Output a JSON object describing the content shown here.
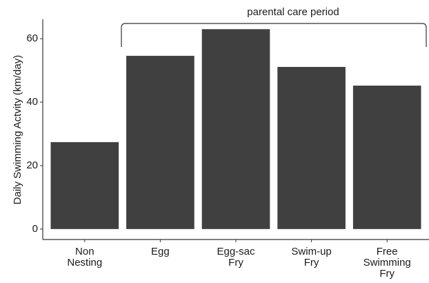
{
  "chart_data": {
    "type": "bar",
    "y_label": "Daily Swimming Actvity (km/day)",
    "annotation": "parental care period",
    "categories": [
      "Non\nNesting",
      "Egg",
      "Egg-sac\nFry",
      "Swim-up\nFry",
      "Free\nSwimming\nFry"
    ],
    "values": [
      27.4,
      54.6,
      63.0,
      51.1,
      45.2
    ],
    "color": "#404040",
    "ylim": [
      -3.3,
      66.1
    ],
    "yticks": [
      0,
      20,
      40,
      60
    ],
    "grid": false
  }
}
